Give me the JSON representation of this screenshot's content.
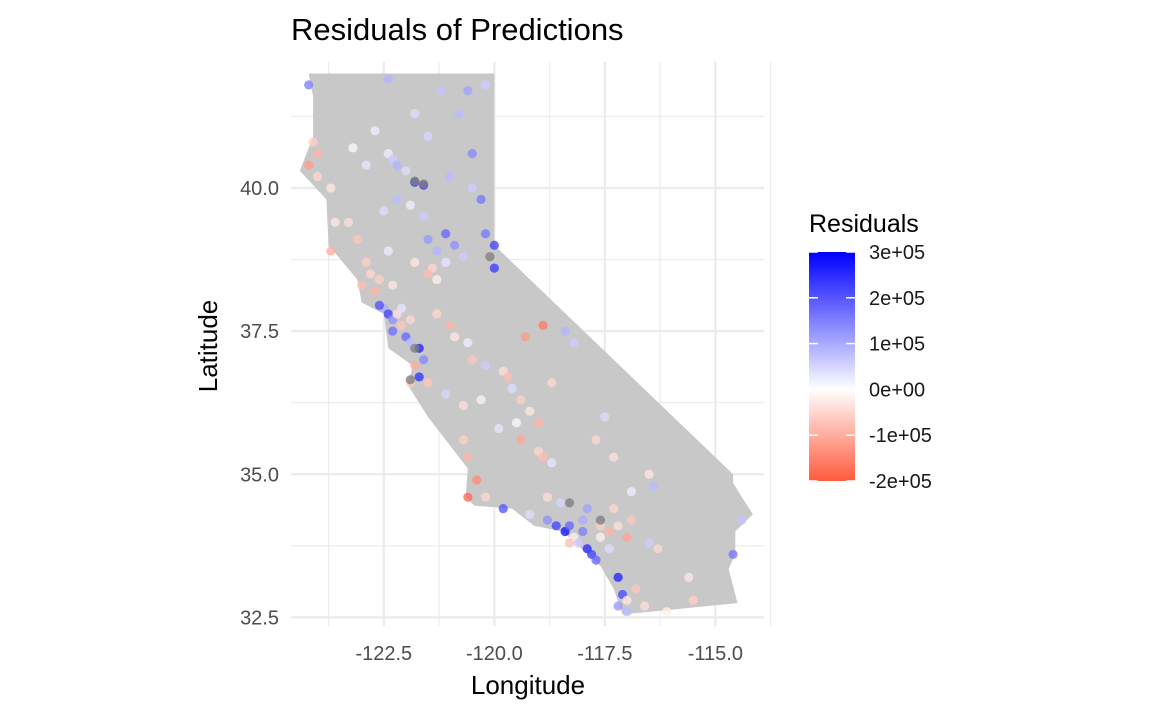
{
  "chart_data": {
    "type": "scatter",
    "title": "Residuals of Predictions",
    "xlabel": "Longitude",
    "ylabel": "Latitude",
    "xlim": [
      -124.6,
      -113.9
    ],
    "ylim": [
      32.35,
      42.2
    ],
    "x_ticks": [
      -122.5,
      -120.0,
      -117.5,
      -115.0
    ],
    "x_tick_labels": [
      "-122.5",
      "-120.0",
      "-117.5",
      "-115.0"
    ],
    "y_ticks": [
      32.5,
      35.0,
      37.5,
      40.0
    ],
    "y_tick_labels": [
      "32.5",
      "35.0",
      "37.5",
      "40.0"
    ],
    "grid": true,
    "background_map": "California state outline",
    "colors": {
      "map_fill": "#c8c8c8",
      "gridline": "#ebebeb",
      "low": "#ff5a3c",
      "mid": "#ffffff",
      "high": "#0000ff",
      "na": "#7f7f7f"
    },
    "legend": {
      "title": "Residuals",
      "placement": "right",
      "range": [
        -200000,
        300000
      ],
      "breaks": [
        300000,
        200000,
        100000,
        0,
        -100000,
        -200000
      ],
      "labels": [
        "3e+05",
        "2e+05",
        "1e+05",
        "0e+00",
        "-1e+05",
        "-2e+05"
      ]
    },
    "points": [
      {
        "lon": -124.2,
        "lat": 41.8,
        "res": 150000
      },
      {
        "lon": -122.4,
        "lat": 41.9,
        "res": 90000
      },
      {
        "lon": -121.2,
        "lat": 41.7,
        "res": 70000
      },
      {
        "lon": -120.6,
        "lat": 41.7,
        "res": 110000
      },
      {
        "lon": -120.2,
        "lat": 41.8,
        "res": 60000
      },
      {
        "lon": -121.8,
        "lat": 41.3,
        "res": 40000
      },
      {
        "lon": -120.8,
        "lat": 41.3,
        "res": 80000
      },
      {
        "lon": -122.7,
        "lat": 41.0,
        "res": 20000
      },
      {
        "lon": -121.5,
        "lat": 40.9,
        "res": 50000
      },
      {
        "lon": -120.5,
        "lat": 40.6,
        "res": 140000
      },
      {
        "lon": -124.1,
        "lat": 40.8,
        "res": -60000
      },
      {
        "lon": -124.0,
        "lat": 40.6,
        "res": -90000
      },
      {
        "lon": -124.2,
        "lat": 40.4,
        "res": -120000
      },
      {
        "lon": -124.0,
        "lat": 40.2,
        "res": -50000
      },
      {
        "lon": -123.7,
        "lat": 40.0,
        "res": -30000
      },
      {
        "lon": -123.2,
        "lat": 40.7,
        "res": 10000
      },
      {
        "lon": -122.9,
        "lat": 40.4,
        "res": 30000
      },
      {
        "lon": -122.4,
        "lat": 40.6,
        "res": 20000
      },
      {
        "lon": -122.3,
        "lat": 40.5,
        "res": 60000
      },
      {
        "lon": -122.2,
        "lat": 40.4,
        "res": 90000
      },
      {
        "lon": -122.0,
        "lat": 40.3,
        "res": 40000
      },
      {
        "lon": -121.8,
        "lat": 40.1,
        "res": 250000
      },
      {
        "lon": -121.6,
        "lat": 40.05,
        "res": 250000
      },
      {
        "lon": -121.0,
        "lat": 40.2,
        "res": 80000
      },
      {
        "lon": -120.5,
        "lat": 40.0,
        "res": 60000
      },
      {
        "lon": -120.3,
        "lat": 39.8,
        "res": 160000
      },
      {
        "lon": -123.3,
        "lat": 39.4,
        "res": -40000
      },
      {
        "lon": -123.1,
        "lat": 39.1,
        "res": -70000
      },
      {
        "lon": -123.6,
        "lat": 39.4,
        "res": -30000
      },
      {
        "lon": -123.7,
        "lat": 38.9,
        "res": -100000
      },
      {
        "lon": -122.9,
        "lat": 38.7,
        "res": -60000
      },
      {
        "lon": -122.5,
        "lat": 39.6,
        "res": 40000
      },
      {
        "lon": -122.2,
        "lat": 39.8,
        "res": 80000
      },
      {
        "lon": -121.9,
        "lat": 39.7,
        "res": 20000
      },
      {
        "lon": -121.6,
        "lat": 39.5,
        "res": 60000
      },
      {
        "lon": -121.5,
        "lat": 39.1,
        "res": 120000
      },
      {
        "lon": -121.3,
        "lat": 38.9,
        "res": 90000
      },
      {
        "lon": -121.1,
        "lat": 39.2,
        "res": 180000
      },
      {
        "lon": -120.9,
        "lat": 39.0,
        "res": 130000
      },
      {
        "lon": -120.7,
        "lat": 38.8,
        "res": 60000
      },
      {
        "lon": -120.2,
        "lat": 39.2,
        "res": 160000
      },
      {
        "lon": -120.0,
        "lat": 39.0,
        "res": 220000
      },
      {
        "lon": -120.0,
        "lat": 38.6,
        "res": 230000
      },
      {
        "lon": -121.4,
        "lat": 38.6,
        "res": -50000
      },
      {
        "lon": -121.5,
        "lat": 38.5,
        "res": -80000
      },
      {
        "lon": -121.3,
        "lat": 38.4,
        "res": -20000
      },
      {
        "lon": -121.1,
        "lat": 38.7,
        "res": 30000
      },
      {
        "lon": -122.3,
        "lat": 38.3,
        "res": -30000
      },
      {
        "lon": -122.6,
        "lat": 38.4,
        "res": -60000
      },
      {
        "lon": -122.7,
        "lat": 38.2,
        "res": -90000
      },
      {
        "lon": -122.5,
        "lat": 37.9,
        "res": 100000
      },
      {
        "lon": -122.4,
        "lat": 37.8,
        "res": 220000
      },
      {
        "lon": -122.3,
        "lat": 37.7,
        "res": 130000
      },
      {
        "lon": -122.2,
        "lat": 37.8,
        "res": -40000
      },
      {
        "lon": -122.1,
        "lat": 37.6,
        "res": -70000
      },
      {
        "lon": -122.0,
        "lat": 37.4,
        "res": 180000
      },
      {
        "lon": -121.9,
        "lat": 37.3,
        "res": 80000
      },
      {
        "lon": -122.1,
        "lat": 37.9,
        "res": 30000
      },
      {
        "lon": -121.9,
        "lat": 37.7,
        "res": -50000
      },
      {
        "lon": -121.7,
        "lat": 37.2,
        "res": 260000
      },
      {
        "lon": -121.8,
        "lat": 36.9,
        "res": -100000
      },
      {
        "lon": -121.9,
        "lat": 36.6,
        "res": -60000
      },
      {
        "lon": -121.7,
        "lat": 36.7,
        "res": 240000
      },
      {
        "lon": -121.3,
        "lat": 37.8,
        "res": -50000
      },
      {
        "lon": -121.0,
        "lat": 37.6,
        "res": -90000
      },
      {
        "lon": -120.9,
        "lat": 37.4,
        "res": -30000
      },
      {
        "lon": -120.6,
        "lat": 37.3,
        "res": 20000
      },
      {
        "lon": -120.5,
        "lat": 37.0,
        "res": -70000
      },
      {
        "lon": -120.2,
        "lat": 36.9,
        "res": 60000
      },
      {
        "lon": -119.8,
        "lat": 36.8,
        "res": -40000
      },
      {
        "lon": -119.7,
        "lat": 36.7,
        "res": -80000
      },
      {
        "lon": -119.6,
        "lat": 36.5,
        "res": 40000
      },
      {
        "lon": -119.4,
        "lat": 36.3,
        "res": -60000
      },
      {
        "lon": -119.2,
        "lat": 36.1,
        "res": -30000
      },
      {
        "lon": -119.0,
        "lat": 35.9,
        "res": -90000
      },
      {
        "lon": -119.0,
        "lat": 35.4,
        "res": -50000
      },
      {
        "lon": -118.9,
        "lat": 35.3,
        "res": -80000
      },
      {
        "lon": -118.7,
        "lat": 35.2,
        "res": 30000
      },
      {
        "lon": -119.5,
        "lat": 35.9,
        "res": 10000
      },
      {
        "lon": -120.7,
        "lat": 35.6,
        "res": -60000
      },
      {
        "lon": -120.6,
        "lat": 35.3,
        "res": -90000
      },
      {
        "lon": -120.4,
        "lat": 34.9,
        "res": -140000
      },
      {
        "lon": -120.6,
        "lat": 34.6,
        "res": -180000
      },
      {
        "lon": -120.2,
        "lat": 34.6,
        "res": -50000
      },
      {
        "lon": -119.8,
        "lat": 34.4,
        "res": 200000
      },
      {
        "lon": -119.2,
        "lat": 34.3,
        "res": 40000
      },
      {
        "lon": -118.8,
        "lat": 34.2,
        "res": 130000
      },
      {
        "lon": -118.6,
        "lat": 34.1,
        "res": 220000
      },
      {
        "lon": -118.4,
        "lat": 34.0,
        "res": 280000
      },
      {
        "lon": -118.3,
        "lat": 34.1,
        "res": 180000
      },
      {
        "lon": -118.2,
        "lat": 33.9,
        "res": -20000
      },
      {
        "lon": -118.1,
        "lat": 33.8,
        "res": 60000
      },
      {
        "lon": -118.0,
        "lat": 34.0,
        "res": 150000
      },
      {
        "lon": -117.9,
        "lat": 33.7,
        "res": 250000
      },
      {
        "lon": -117.8,
        "lat": 33.6,
        "res": 220000
      },
      {
        "lon": -117.7,
        "lat": 33.5,
        "res": 180000
      },
      {
        "lon": -118.3,
        "lat": 33.8,
        "res": -80000
      },
      {
        "lon": -118.0,
        "lat": 34.2,
        "res": 100000
      },
      {
        "lon": -117.6,
        "lat": 34.1,
        "res": -60000
      },
      {
        "lon": -117.4,
        "lat": 34.0,
        "res": -90000
      },
      {
        "lon": -117.2,
        "lat": 34.1,
        "res": -40000
      },
      {
        "lon": -117.0,
        "lat": 33.9,
        "res": -110000
      },
      {
        "lon": -116.9,
        "lat": 34.2,
        "res": -70000
      },
      {
        "lon": -116.5,
        "lat": 33.8,
        "res": 60000
      },
      {
        "lon": -116.3,
        "lat": 33.7,
        "res": -50000
      },
      {
        "lon": -117.2,
        "lat": 33.2,
        "res": 260000
      },
      {
        "lon": -117.1,
        "lat": 32.9,
        "res": 210000
      },
      {
        "lon": -117.2,
        "lat": 32.7,
        "res": 120000
      },
      {
        "lon": -117.0,
        "lat": 32.6,
        "res": 80000
      },
      {
        "lon": -117.0,
        "lat": 32.8,
        "res": -30000
      },
      {
        "lon": -116.8,
        "lat": 33.0,
        "res": -70000
      },
      {
        "lon": -116.6,
        "lat": 32.7,
        "res": -40000
      },
      {
        "lon": -116.1,
        "lat": 32.6,
        "res": -20000
      },
      {
        "lon": -115.5,
        "lat": 32.8,
        "res": -60000
      },
      {
        "lon": -115.6,
        "lat": 33.2,
        "res": -30000
      },
      {
        "lon": -114.6,
        "lat": 33.6,
        "res": 160000
      },
      {
        "lon": -114.4,
        "lat": 34.2,
        "res": 70000
      },
      {
        "lon": -117.3,
        "lat": 35.3,
        "res": -40000
      },
      {
        "lon": -117.7,
        "lat": 35.6,
        "res": -50000
      },
      {
        "lon": -118.2,
        "lat": 37.3,
        "res": 60000
      },
      {
        "lon": -118.4,
        "lat": 37.5,
        "res": 90000
      },
      {
        "lon": -119.3,
        "lat": 37.4,
        "res": -120000
      },
      {
        "lon": -118.9,
        "lat": 37.6,
        "res": -160000
      },
      {
        "lon": -117.5,
        "lat": 36.0,
        "res": 40000
      },
      {
        "lon": -116.9,
        "lat": 34.7,
        "res": 20000
      },
      {
        "lon": -116.4,
        "lat": 34.8,
        "res": 80000
      },
      {
        "lon": -116.5,
        "lat": 35.0,
        "res": -30000
      },
      {
        "lon": -118.7,
        "lat": 36.6,
        "res": -50000
      },
      {
        "lon": -121.1,
        "lat": 36.4,
        "res": 50000
      },
      {
        "lon": -120.7,
        "lat": 36.2,
        "res": -40000
      },
      {
        "lon": -122.4,
        "lat": 38.9,
        "res": 20000
      },
      {
        "lon": -121.8,
        "lat": 38.7,
        "res": -30000
      },
      {
        "lon": -122.8,
        "lat": 38.5,
        "res": -50000
      },
      {
        "lon": -123.0,
        "lat": 38.3,
        "res": -80000
      },
      {
        "lon": -122.6,
        "lat": 37.95,
        "res": 200000
      },
      {
        "lon": -122.3,
        "lat": 37.5,
        "res": 170000
      },
      {
        "lon": -121.6,
        "lat": 37.0,
        "res": 140000
      },
      {
        "lon": -121.5,
        "lat": 36.6,
        "res": -70000
      },
      {
        "lon": -120.3,
        "lat": 36.3,
        "res": -20000
      },
      {
        "lon": -119.9,
        "lat": 35.8,
        "res": 30000
      },
      {
        "lon": -119.4,
        "lat": 35.6,
        "res": -110000
      },
      {
        "lon": -118.8,
        "lat": 34.6,
        "res": -40000
      },
      {
        "lon": -118.5,
        "lat": 34.5,
        "res": 50000
      },
      {
        "lon": -117.9,
        "lat": 34.4,
        "res": 110000
      },
      {
        "lon": -117.3,
        "lat": 34.4,
        "res": -50000
      },
      {
        "lon": -117.4,
        "lat": 33.7,
        "res": 40000
      },
      {
        "lon": -117.6,
        "lat": 33.9,
        "res": -20000
      },
      {
        "lon": -121.8,
        "lat": 37.2,
        "res": null
      },
      {
        "lon": -121.9,
        "lat": 36.65,
        "res": null
      },
      {
        "lon": -121.8,
        "lat": 40.12,
        "res": null
      },
      {
        "lon": -121.6,
        "lat": 40.07,
        "res": null
      },
      {
        "lon": -120.1,
        "lat": 38.8,
        "res": null
      },
      {
        "lon": -118.3,
        "lat": 34.5,
        "res": null
      },
      {
        "lon": -117.6,
        "lat": 34.2,
        "res": null
      }
    ]
  }
}
